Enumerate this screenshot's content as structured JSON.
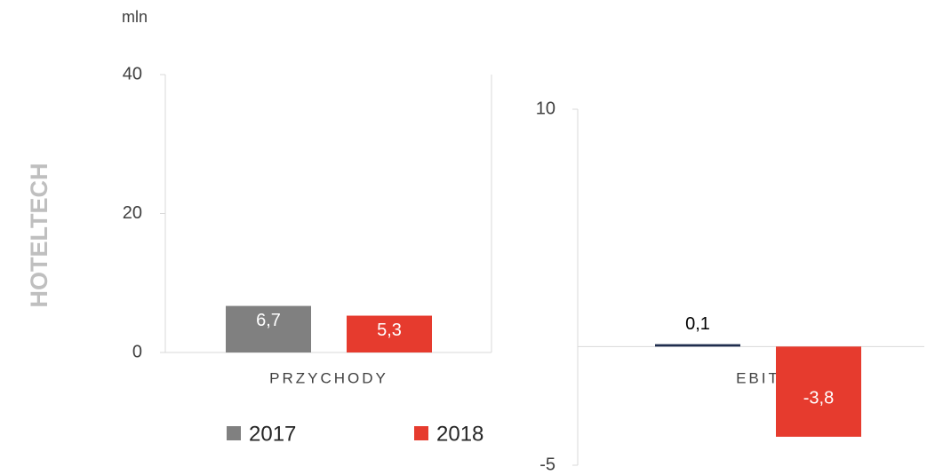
{
  "unit": "mln",
  "label": "HOTELTECH",
  "chart_data": [
    {
      "type": "bar",
      "categories": [
        "PRZYCHODY"
      ],
      "series": [
        {
          "name": "2017",
          "color": "#808080",
          "values": [
            6.7
          ],
          "value_labels": [
            "6,7"
          ]
        },
        {
          "name": "2018",
          "color": "#e63b2e",
          "values": [
            5.3
          ],
          "value_labels": [
            "5,3"
          ]
        }
      ],
      "ylim": [
        0,
        40
      ],
      "yticks": [
        0,
        20,
        40
      ],
      "legend": "bottom"
    },
    {
      "type": "bar",
      "categories": [
        "EBIT"
      ],
      "series": [
        {
          "color": "#1f2d4e",
          "values": [
            0.1
          ],
          "value_labels": [
            "0,1"
          ]
        },
        {
          "color": "#e63b2e",
          "values": [
            -3.8
          ],
          "value_labels": [
            "-3,8"
          ]
        }
      ],
      "ylim": [
        -5,
        10
      ],
      "yticks": [
        -5,
        10
      ]
    }
  ]
}
